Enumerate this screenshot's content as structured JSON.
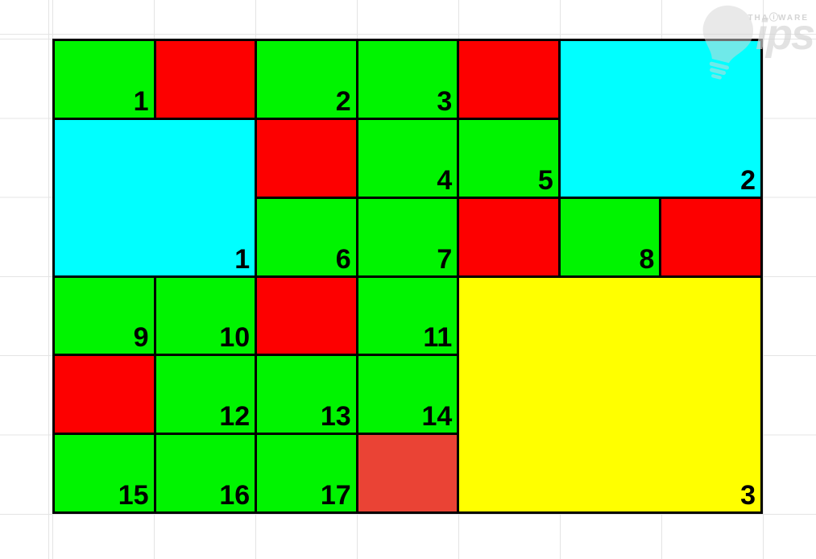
{
  "page": {
    "background": "#ffffff",
    "gridline_color": "#e4e4e4"
  },
  "watermark": {
    "brand_left": "THA",
    "info_glyph": "ⓘ",
    "brand_right": "WARE",
    "logo_text": "ips"
  },
  "board": {
    "rows": 6,
    "columns": 7,
    "border_color": "#000000",
    "colors": {
      "green": "#00f400",
      "red": "#fd0000",
      "cyan": "#00ffff",
      "yellow": "#ffff00",
      "red_muted": "#ea4335"
    },
    "cells": [
      {
        "row": 1,
        "col": 1,
        "color": "green",
        "label": "1"
      },
      {
        "row": 1,
        "col": 2,
        "color": "red",
        "label": ""
      },
      {
        "row": 1,
        "col": 3,
        "color": "green",
        "label": "2"
      },
      {
        "row": 1,
        "col": 4,
        "color": "green",
        "label": "3"
      },
      {
        "row": 1,
        "col": 5,
        "color": "red",
        "label": ""
      },
      {
        "row": 1,
        "col": 6,
        "colspan": 2,
        "rowspan": 2,
        "color": "cyan",
        "label": "2"
      },
      {
        "row": 2,
        "col": 1,
        "colspan": 2,
        "rowspan": 2,
        "color": "cyan",
        "label": "1"
      },
      {
        "row": 2,
        "col": 3,
        "color": "red",
        "label": ""
      },
      {
        "row": 2,
        "col": 4,
        "color": "green",
        "label": "4"
      },
      {
        "row": 2,
        "col": 5,
        "color": "green",
        "label": "5"
      },
      {
        "row": 3,
        "col": 3,
        "color": "green",
        "label": "6"
      },
      {
        "row": 3,
        "col": 4,
        "color": "green",
        "label": "7"
      },
      {
        "row": 3,
        "col": 5,
        "color": "red",
        "label": ""
      },
      {
        "row": 3,
        "col": 6,
        "color": "green",
        "label": "8"
      },
      {
        "row": 3,
        "col": 7,
        "color": "red",
        "label": ""
      },
      {
        "row": 4,
        "col": 1,
        "color": "green",
        "label": "9"
      },
      {
        "row": 4,
        "col": 2,
        "color": "green",
        "label": "10"
      },
      {
        "row": 4,
        "col": 3,
        "color": "red",
        "label": ""
      },
      {
        "row": 4,
        "col": 4,
        "color": "green",
        "label": "11"
      },
      {
        "row": 4,
        "col": 5,
        "colspan": 3,
        "rowspan": 3,
        "color": "yellow",
        "label": "3"
      },
      {
        "row": 5,
        "col": 1,
        "color": "red",
        "label": ""
      },
      {
        "row": 5,
        "col": 2,
        "color": "green",
        "label": "12"
      },
      {
        "row": 5,
        "col": 3,
        "color": "green",
        "label": "13"
      },
      {
        "row": 5,
        "col": 4,
        "color": "green",
        "label": "14"
      },
      {
        "row": 6,
        "col": 1,
        "color": "green",
        "label": "15"
      },
      {
        "row": 6,
        "col": 2,
        "color": "green",
        "label": "16"
      },
      {
        "row": 6,
        "col": 3,
        "color": "green",
        "label": "17"
      },
      {
        "row": 6,
        "col": 4,
        "color": "red_muted",
        "label": ""
      }
    ]
  }
}
